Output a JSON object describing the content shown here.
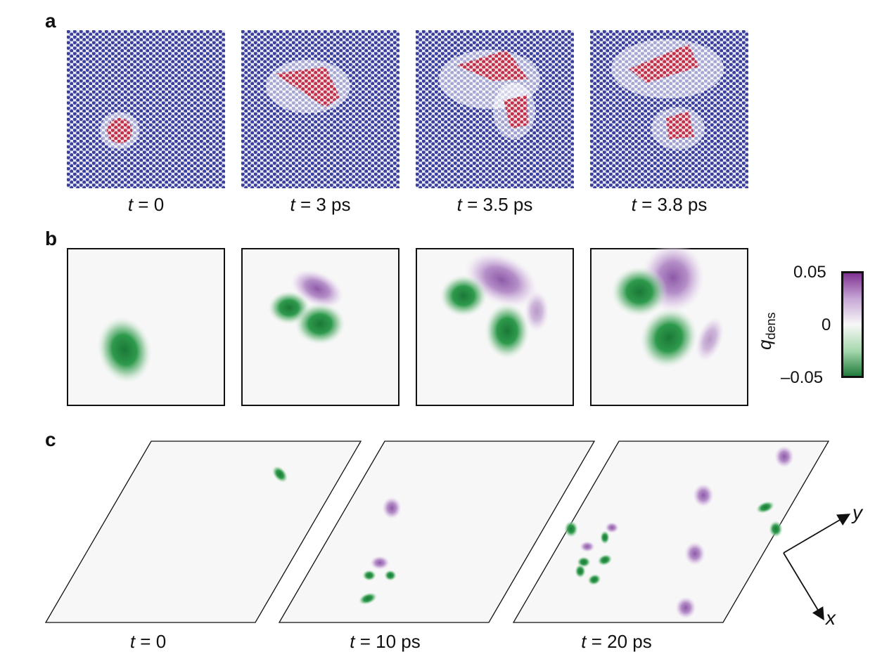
{
  "panel_labels": {
    "a": "a",
    "b": "b",
    "c": "c"
  },
  "row_a": {
    "frames": [
      {
        "t_label": "t",
        "t_value": " = 0"
      },
      {
        "t_label": "t",
        "t_value": " = 3 ps"
      },
      {
        "t_label": "t",
        "t_value": " = 3.5 ps"
      },
      {
        "t_label": "t",
        "t_value": " = 3.8 ps"
      }
    ]
  },
  "row_b": {
    "colorbar": {
      "label_main": "q",
      "label_sub": "dens",
      "ticks": [
        "0.05",
        "0",
        "–0.05"
      ],
      "range": [
        -0.05,
        0.05
      ],
      "colors": {
        "positive": "#7b2d8e",
        "zero": "#f7f7f7",
        "negative": "#1b7837"
      }
    }
  },
  "row_c": {
    "frames": [
      {
        "t_label": "t",
        "t_value": " = 0"
      },
      {
        "t_label": "t",
        "t_value": " = 10 ps"
      },
      {
        "t_label": "t",
        "t_value": " = 20 ps"
      }
    ],
    "axes": {
      "x": "x",
      "y": "y"
    }
  },
  "colors": {
    "lattice": "#3a3f9e",
    "defect": "#c0304a",
    "green": "#1b7837",
    "purple": "#8e5aa8"
  }
}
